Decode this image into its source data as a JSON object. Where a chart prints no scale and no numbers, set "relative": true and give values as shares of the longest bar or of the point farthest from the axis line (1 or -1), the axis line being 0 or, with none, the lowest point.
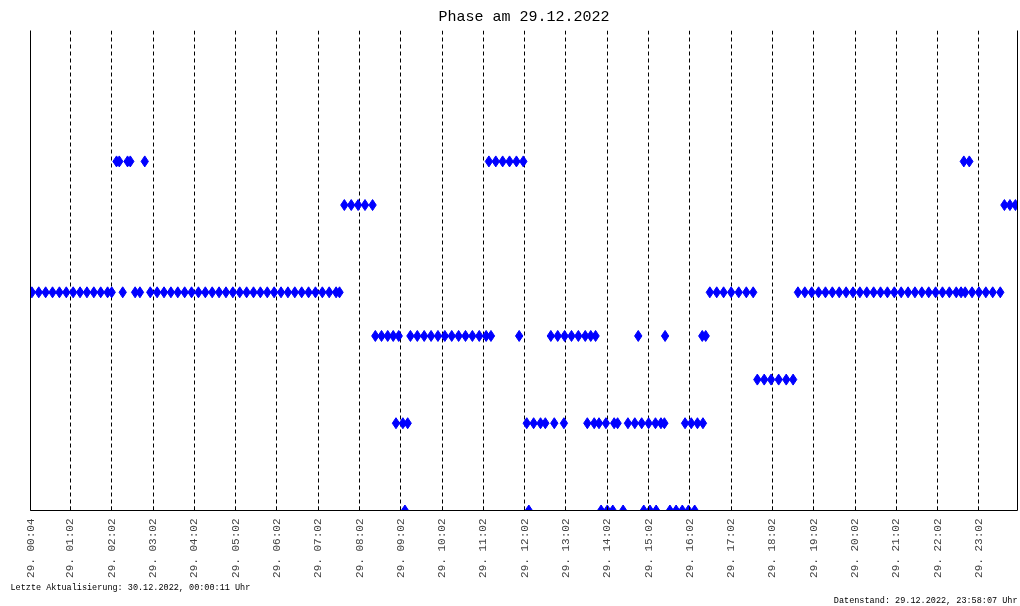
{
  "chart_data": {
    "type": "scatter",
    "title": "Phase am 29.12.2022",
    "relative": true,
    "marker": "diamond",
    "grid": "x",
    "xlim": [
      "2022-12-29T00:04",
      "2022-12-29T23:58"
    ],
    "xticks": [
      {
        "value": "2022-12-29T00:04",
        "label": "29. 00:04"
      },
      {
        "value": "2022-12-29T01:02",
        "label": "29. 01:02"
      },
      {
        "value": "2022-12-29T02:02",
        "label": "29. 02:02"
      },
      {
        "value": "2022-12-29T03:02",
        "label": "29. 03:02"
      },
      {
        "value": "2022-12-29T04:02",
        "label": "29. 04:02"
      },
      {
        "value": "2022-12-29T05:02",
        "label": "29. 05:02"
      },
      {
        "value": "2022-12-29T06:02",
        "label": "29. 06:02"
      },
      {
        "value": "2022-12-29T07:02",
        "label": "29. 07:02"
      },
      {
        "value": "2022-12-29T08:02",
        "label": "29. 08:02"
      },
      {
        "value": "2022-12-29T09:02",
        "label": "29. 09:02"
      },
      {
        "value": "2022-12-29T10:02",
        "label": "29. 10:02"
      },
      {
        "value": "2022-12-29T11:02",
        "label": "29. 11:02"
      },
      {
        "value": "2022-12-29T12:02",
        "label": "29. 12:02"
      },
      {
        "value": "2022-12-29T13:02",
        "label": "29. 13:02"
      },
      {
        "value": "2022-12-29T14:02",
        "label": "29. 14:02"
      },
      {
        "value": "2022-12-29T15:02",
        "label": "29. 15:02"
      },
      {
        "value": "2022-12-29T16:02",
        "label": "29. 16:02"
      },
      {
        "value": "2022-12-29T17:02",
        "label": "29. 17:02"
      },
      {
        "value": "2022-12-29T18:02",
        "label": "29. 18:02"
      },
      {
        "value": "2022-12-29T19:02",
        "label": "29. 19:02"
      },
      {
        "value": "2022-12-29T20:02",
        "label": "29. 20:02"
      },
      {
        "value": "2022-12-29T21:02",
        "label": "29. 21:02"
      },
      {
        "value": "2022-12-29T22:02",
        "label": "29. 22:02"
      },
      {
        "value": "2022-12-29T23:02",
        "label": "29. 23:02"
      }
    ],
    "x": [
      "2022-12-29T00:06",
      "2022-12-29T00:16",
      "2022-12-29T00:26",
      "2022-12-29T00:36",
      "2022-12-29T00:46",
      "2022-12-29T00:56",
      "2022-12-29T01:06",
      "2022-12-29T01:16",
      "2022-12-29T01:26",
      "2022-12-29T01:36",
      "2022-12-29T01:46",
      "2022-12-29T01:56",
      "2022-12-29T02:02",
      "2022-12-29T02:09",
      "2022-12-29T02:13",
      "2022-12-29T02:18",
      "2022-12-29T02:25",
      "2022-12-29T02:29",
      "2022-12-29T02:36",
      "2022-12-29T02:43",
      "2022-12-29T02:50",
      "2022-12-29T02:58",
      "2022-12-29T03:08",
      "2022-12-29T03:18",
      "2022-12-29T03:28",
      "2022-12-29T03:38",
      "2022-12-29T03:48",
      "2022-12-29T03:58",
      "2022-12-29T04:08",
      "2022-12-29T04:18",
      "2022-12-29T04:28",
      "2022-12-29T04:38",
      "2022-12-29T04:48",
      "2022-12-29T04:58",
      "2022-12-29T05:08",
      "2022-12-29T05:18",
      "2022-12-29T05:28",
      "2022-12-29T05:38",
      "2022-12-29T05:48",
      "2022-12-29T05:58",
      "2022-12-29T06:08",
      "2022-12-29T06:18",
      "2022-12-29T06:28",
      "2022-12-29T06:38",
      "2022-12-29T06:48",
      "2022-12-29T06:58",
      "2022-12-29T07:08",
      "2022-12-29T07:18",
      "2022-12-29T07:28",
      "2022-12-29T07:33",
      "2022-12-29T07:40",
      "2022-12-29T07:50",
      "2022-12-29T08:00",
      "2022-12-29T08:10",
      "2022-12-29T08:21",
      "2022-12-29T08:25",
      "2022-12-29T08:34",
      "2022-12-29T08:43",
      "2022-12-29T08:51",
      "2022-12-29T08:55",
      "2022-12-29T08:59",
      "2022-12-29T09:05",
      "2022-12-29T09:08",
      "2022-12-29T09:12",
      "2022-12-29T09:16",
      "2022-12-29T09:26",
      "2022-12-29T09:36",
      "2022-12-29T09:46",
      "2022-12-29T09:56",
      "2022-12-29T10:06",
      "2022-12-29T10:16",
      "2022-12-29T10:26",
      "2022-12-29T10:36",
      "2022-12-29T10:46",
      "2022-12-29T10:56",
      "2022-12-29T11:06",
      "2022-12-29T11:10",
      "2022-12-29T11:13",
      "2022-12-29T11:20",
      "2022-12-29T11:30",
      "2022-12-29T11:40",
      "2022-12-29T11:50",
      "2022-12-29T11:54",
      "2022-12-29T12:00",
      "2022-12-29T12:05",
      "2022-12-29T12:08",
      "2022-12-29T12:15",
      "2022-12-29T12:25",
      "2022-12-29T12:32",
      "2022-12-29T12:40",
      "2022-12-29T12:45",
      "2022-12-29T12:50",
      "2022-12-29T12:59",
      "2022-12-29T13:00",
      "2022-12-29T13:10",
      "2022-12-29T13:20",
      "2022-12-29T13:30",
      "2022-12-29T13:33",
      "2022-12-29T13:38",
      "2022-12-29T13:43",
      "2022-12-29T13:45",
      "2022-12-29T13:50",
      "2022-12-29T13:53",
      "2022-12-29T14:00",
      "2022-12-29T14:02",
      "2022-12-29T14:10",
      "2022-12-29T14:12",
      "2022-12-29T14:17",
      "2022-12-29T14:25",
      "2022-12-29T14:32",
      "2022-12-29T14:42",
      "2022-12-29T14:47",
      "2022-12-29T14:52",
      "2022-12-29T14:55",
      "2022-12-29T15:02",
      "2022-12-29T15:04",
      "2022-12-29T15:12",
      "2022-12-29T15:13",
      "2022-12-29T15:20",
      "2022-12-29T15:25",
      "2022-12-29T15:26",
      "2022-12-29T15:33",
      "2022-12-29T15:42",
      "2022-12-29T15:51",
      "2022-12-29T15:55",
      "2022-12-29T16:00",
      "2022-12-29T16:04",
      "2022-12-29T16:09",
      "2022-12-29T16:13",
      "2022-12-29T16:20",
      "2022-12-29T16:21",
      "2022-12-29T16:25",
      "2022-12-29T16:31",
      "2022-12-29T16:41",
      "2022-12-29T16:51",
      "2022-12-29T17:02",
      "2022-12-29T17:13",
      "2022-12-29T17:24",
      "2022-12-29T17:34",
      "2022-12-29T17:40",
      "2022-12-29T17:50",
      "2022-12-29T18:00",
      "2022-12-29T18:11",
      "2022-12-29T18:22",
      "2022-12-29T18:32",
      "2022-12-29T18:39",
      "2022-12-29T18:49",
      "2022-12-29T18:59",
      "2022-12-29T19:09",
      "2022-12-29T19:19",
      "2022-12-29T19:29",
      "2022-12-29T19:39",
      "2022-12-29T19:49",
      "2022-12-29T19:59",
      "2022-12-29T20:09",
      "2022-12-29T20:19",
      "2022-12-29T20:29",
      "2022-12-29T20:39",
      "2022-12-29T20:49",
      "2022-12-29T20:59",
      "2022-12-29T21:09",
      "2022-12-29T21:19",
      "2022-12-29T21:29",
      "2022-12-29T21:39",
      "2022-12-29T21:49",
      "2022-12-29T21:59",
      "2022-12-29T22:09",
      "2022-12-29T22:19",
      "2022-12-29T22:29",
      "2022-12-29T22:36",
      "2022-12-29T22:40",
      "2022-12-29T22:42",
      "2022-12-29T22:48",
      "2022-12-29T22:52",
      "2022-12-29T23:02",
      "2022-12-29T23:12",
      "2022-12-29T23:22",
      "2022-12-29T23:33",
      "2022-12-29T23:39",
      "2022-12-29T23:47",
      "2022-12-29T23:55"
    ],
    "series": [
      {
        "color": "#0000ff",
        "values": [
          0.625,
          0.625,
          0.625,
          0.625,
          0.625,
          0.625,
          0.625,
          0.625,
          0.625,
          0.625,
          0.625,
          0.625,
          0.625,
          1,
          1,
          0.625,
          1,
          1,
          0.625,
          0.625,
          1,
          0.625,
          0.625,
          0.625,
          0.625,
          0.625,
          0.625,
          0.625,
          0.625,
          0.625,
          0.625,
          0.625,
          0.625,
          0.625,
          0.625,
          0.625,
          0.625,
          0.625,
          0.625,
          0.625,
          0.625,
          0.625,
          0.625,
          0.625,
          0.625,
          0.625,
          0.625,
          0.625,
          0.625,
          0.625,
          0.875,
          0.875,
          0.875,
          0.875,
          0.875,
          0.5,
          0.5,
          0.5,
          0.5,
          0.25,
          0.5,
          0.25,
          0,
          0.25,
          0.5,
          0.5,
          0.5,
          0.5,
          0.5,
          0.5,
          0.5,
          0.5,
          0.5,
          0.5,
          0.5,
          0.5,
          1,
          0.5,
          1,
          1,
          1,
          1,
          0.5,
          1,
          0.25,
          0,
          0.25,
          0.25,
          0.25,
          0.5,
          0.25,
          0.5,
          0.25,
          0.5,
          0.5,
          0.5,
          0.5,
          0.25,
          0.5,
          0.25,
          0.5,
          0.25,
          0,
          0.25,
          0,
          0,
          0.25,
          0.25,
          0,
          0.25,
          0.25,
          0.5,
          0.25,
          0,
          0.25,
          0,
          0.25,
          0,
          0.25,
          0.25,
          0.5,
          0,
          0,
          0,
          0.25,
          0,
          0.25,
          0,
          0.25,
          0.5,
          0.25,
          0.5,
          0.625,
          0.625,
          0.625,
          0.625,
          0.625,
          0.625,
          0.625,
          0.375,
          0.375,
          0.375,
          0.375,
          0.375,
          0.375,
          0.625,
          0.625,
          0.625,
          0.625,
          0.625,
          0.625,
          0.625,
          0.625,
          0.625,
          0.625,
          0.625,
          0.625,
          0.625,
          0.625,
          0.625,
          0.625,
          0.625,
          0.625,
          0.625,
          0.625,
          0.625,
          0.625,
          0.625,
          0.625,
          0.625,
          1,
          0.625,
          1,
          0.625,
          0.625,
          0.625,
          0.625,
          0.625,
          0.875,
          0.875,
          0.875
        ]
      }
    ],
    "annotations": [
      "Letzte Aktualisierung: 30.12.2022, 00:00:11 Uhr",
      "Datenstand: 29.12.2022, 23:58:07 Uhr"
    ]
  }
}
